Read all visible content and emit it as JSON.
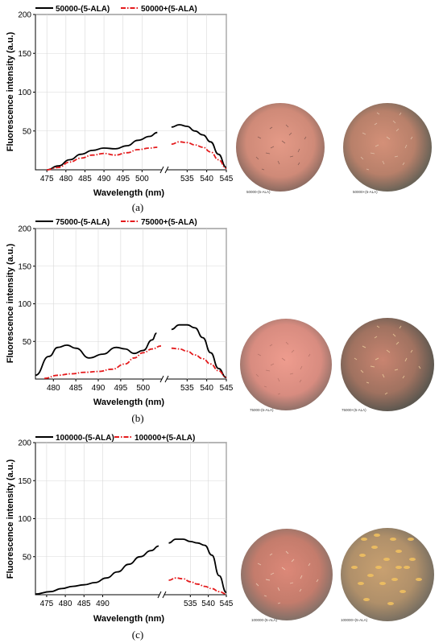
{
  "chart_data": [
    {
      "type": "line",
      "panel_caption": "(a)",
      "xlabel": "Wavelength (nm)",
      "ylabel": "Fluorescence intensity (a.u.)",
      "ylim": [
        0,
        200
      ],
      "y_ticks": [
        50,
        100,
        150,
        200
      ],
      "x_ticks": [
        "475",
        "480",
        "485",
        "490",
        "495",
        "500",
        "535",
        "540",
        "545"
      ],
      "broken_x_axis": true,
      "grid": true,
      "legend_position": "top",
      "series": [
        {
          "name": "50000-(5-ALA)",
          "color": "#000000",
          "style": "solid",
          "x": [
            475,
            478,
            481,
            484,
            487,
            490,
            493,
            496,
            499,
            502,
            504,
            531,
            533,
            535,
            537,
            539,
            541,
            543,
            545
          ],
          "y": [
            0,
            5,
            13,
            20,
            25,
            28,
            27,
            31,
            38,
            43,
            48,
            55,
            58,
            56,
            50,
            45,
            36,
            20,
            3
          ]
        },
        {
          "name": "50000+(5-ALA)",
          "color": "#e41a1c",
          "style": "dashdot",
          "x": [
            475,
            478,
            481,
            484,
            487,
            490,
            493,
            496,
            499,
            502,
            504,
            531,
            533,
            535,
            537,
            539,
            541,
            543,
            545
          ],
          "y": [
            0,
            3,
            10,
            15,
            19,
            21,
            19,
            22,
            26,
            28,
            29,
            33,
            36,
            35,
            32,
            29,
            23,
            13,
            2
          ]
        }
      ],
      "image_labels": [
        "50000-(5-ALA)",
        "50000+(5-ALA)"
      ]
    },
    {
      "type": "line",
      "panel_caption": "(b)",
      "xlabel": "Wavelength (nm)",
      "ylabel": "Fluorescence intensity (a.u.)",
      "ylim": [
        0,
        200
      ],
      "y_ticks": [
        50,
        100,
        150,
        200
      ],
      "x_ticks": [
        "480",
        "485",
        "490",
        "495",
        "500",
        "535",
        "540",
        "545"
      ],
      "broken_x_axis": true,
      "grid": true,
      "legend_position": "top",
      "series": [
        {
          "name": "75000-(5-ALA)",
          "color": "#000000",
          "style": "solid",
          "x": [
            476,
            479,
            481,
            483,
            485,
            488,
            491,
            494,
            496,
            498,
            500,
            502,
            503,
            531,
            533,
            535,
            537,
            539,
            541,
            543,
            545
          ],
          "y": [
            5,
            30,
            42,
            45,
            41,
            28,
            33,
            42,
            40,
            34,
            38,
            52,
            61,
            66,
            72,
            72,
            68,
            55,
            35,
            14,
            2
          ]
        },
        {
          "name": "75000+(5-ALA)",
          "color": "#e41a1c",
          "style": "dashdot",
          "x": [
            478,
            481,
            484,
            487,
            490,
            493,
            496,
            498,
            500,
            502,
            504,
            531,
            533,
            535,
            537,
            539,
            541,
            543,
            545
          ],
          "y": [
            1,
            5,
            7,
            9,
            10,
            13,
            20,
            28,
            35,
            40,
            44,
            41,
            40,
            37,
            32,
            27,
            20,
            11,
            2
          ]
        }
      ],
      "image_labels": [
        "75000-(5-ALA)",
        "75000+(5-ALA)"
      ]
    },
    {
      "type": "line",
      "panel_caption": "(c)",
      "xlabel": "Wavelength (nm)",
      "ylabel": "Fluorescence intensity (a.u.)",
      "ylim": [
        0,
        200
      ],
      "y_ticks": [
        50,
        100,
        150,
        200
      ],
      "x_ticks": [
        "475",
        "480",
        "485",
        "490",
        "535",
        "540",
        "545"
      ],
      "broken_x_axis": true,
      "grid": true,
      "legend_position": "top",
      "series": [
        {
          "name": "100000-(5-ALA)",
          "color": "#000000",
          "style": "solid",
          "x": [
            472,
            476,
            479,
            482,
            485,
            488,
            491,
            494,
            497,
            500,
            503,
            505,
            529,
            531,
            533,
            535,
            537,
            539,
            541,
            543,
            545
          ],
          "y": [
            1,
            4,
            8,
            11,
            13,
            16,
            22,
            30,
            40,
            50,
            58,
            64,
            68,
            73,
            73,
            70,
            68,
            65,
            52,
            25,
            3
          ]
        },
        {
          "name": "100000+(5-ALA)",
          "color": "#e41a1c",
          "style": "dashdot",
          "x": [
            529,
            531,
            533,
            535,
            537,
            539,
            541,
            543,
            545
          ],
          "y": [
            19,
            22,
            21,
            17,
            14,
            11,
            8,
            4,
            1
          ]
        }
      ],
      "image_labels": [
        "100000-(5-ALA)",
        "100000+(5-ALA)"
      ]
    }
  ]
}
